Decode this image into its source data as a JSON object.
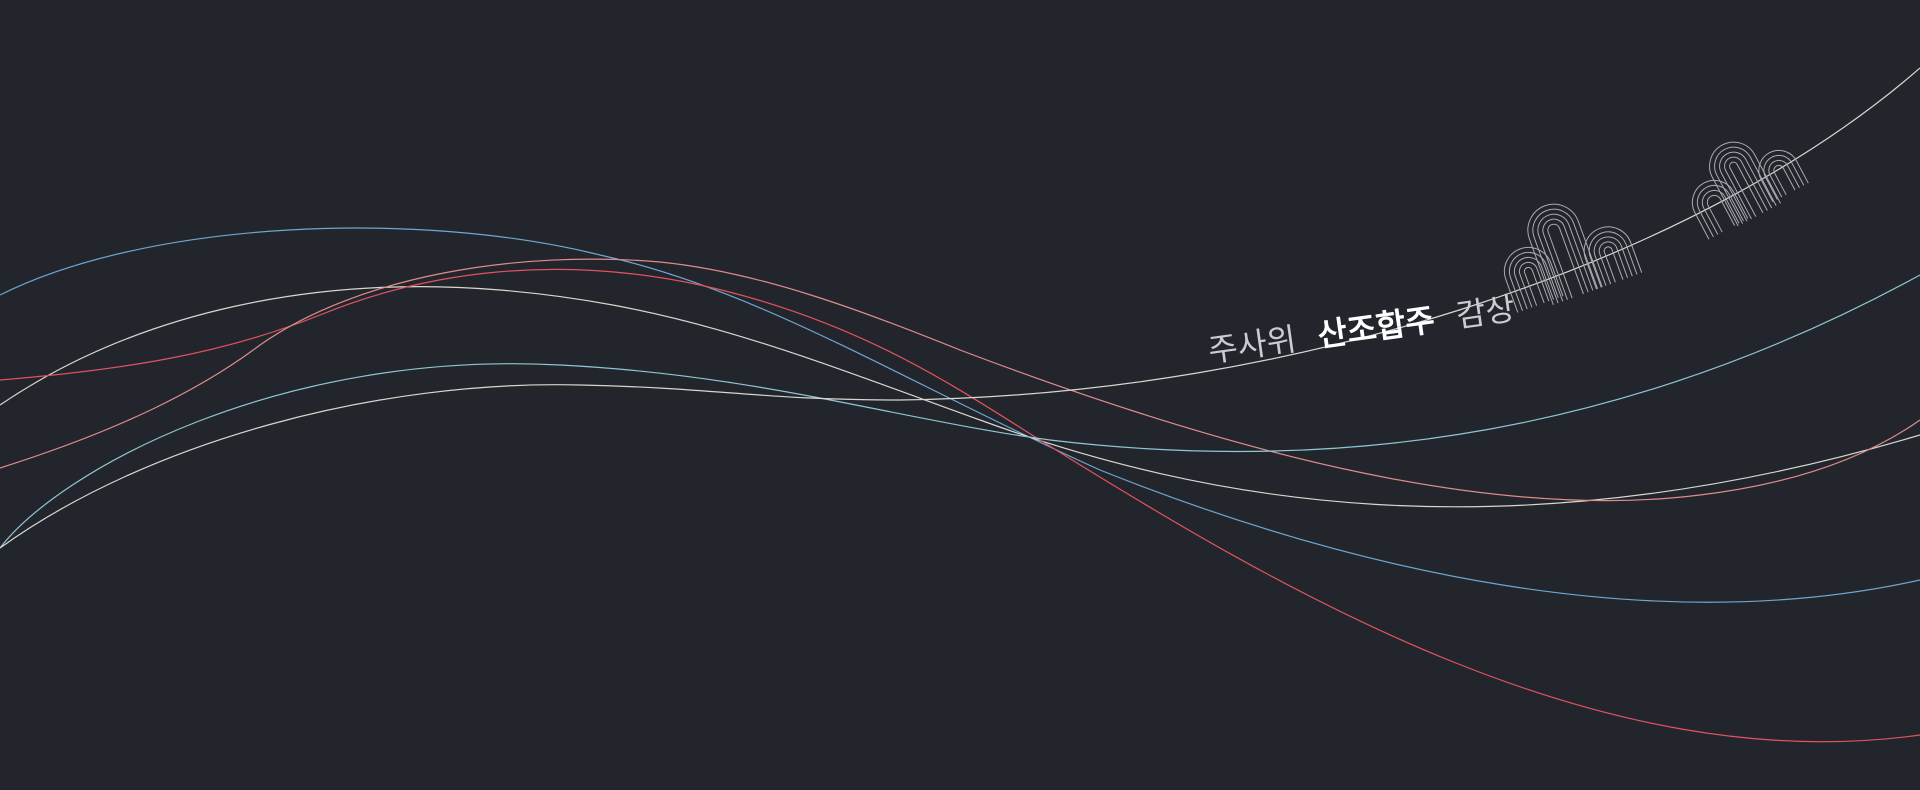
{
  "caption": {
    "prefix": "주사위",
    "emphasis": "산조합주",
    "suffix": "감상"
  },
  "colors": {
    "background": "#22262c",
    "line_white": "#d9d6cf",
    "line_blue": "#6fa6d3",
    "line_cyan": "#8ec7d2",
    "line_red": "#e0535f",
    "line_pink": "#e08b8b",
    "arch_stroke": "#a9acb1"
  },
  "icon": "rainbow-arches-decoration"
}
